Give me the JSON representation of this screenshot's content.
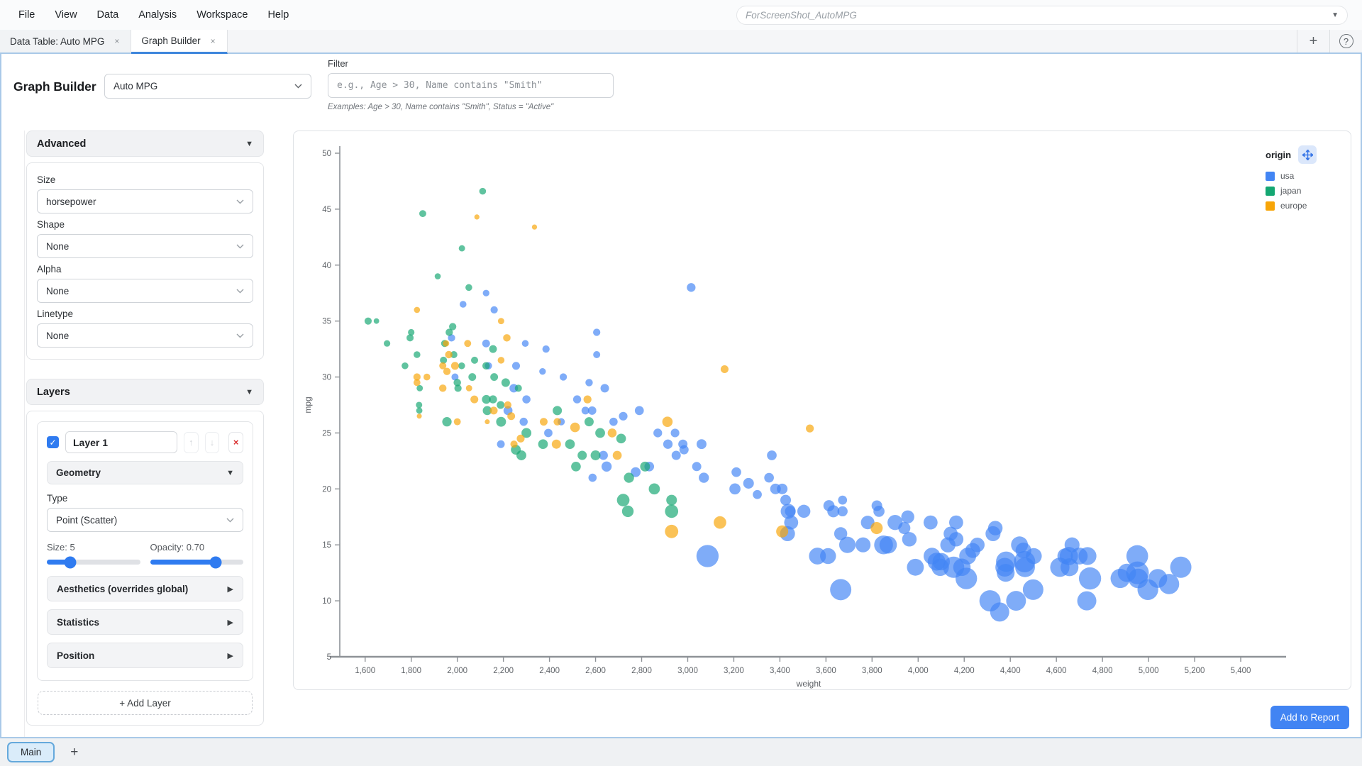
{
  "icons": {
    "check": "✓",
    "caret_down": "▼",
    "caret_right": "▶",
    "dropdown": "▼",
    "close": "×",
    "plus": "+",
    "help": "?",
    "up": "↑",
    "down": "↓"
  },
  "menubar": {
    "items": [
      "File",
      "View",
      "Data",
      "Analysis",
      "Workspace",
      "Help"
    ],
    "workspace_name": "ForScreenShot_AutoMPG"
  },
  "tabs": [
    {
      "label": "Data Table: Auto MPG"
    },
    {
      "label": "Graph Builder"
    }
  ],
  "header": {
    "title": "Graph Builder",
    "dataset_select": "Auto MPG",
    "filter_label": "Filter",
    "filter_placeholder": "e.g., Age > 30, Name contains \"Smith\"",
    "filter_examples": "Examples: Age > 30, Name contains \"Smith\", Status = \"Active\""
  },
  "sidebar": {
    "advanced": {
      "title": "Advanced",
      "fields": [
        {
          "label": "Size",
          "value": "horsepower"
        },
        {
          "label": "Shape",
          "value": "None"
        },
        {
          "label": "Alpha",
          "value": "None"
        },
        {
          "label": "Linetype",
          "value": "None"
        }
      ]
    },
    "layers": {
      "title": "Layers",
      "layer": {
        "name": "Layer 1",
        "checked": true,
        "geometry_title": "Geometry",
        "type_label": "Type",
        "type_value": "Point (Scatter)",
        "size_label": "Size: 5",
        "size_percent": 25,
        "opacity_label": "Opacity: 0.70",
        "opacity_percent": 70,
        "sections": [
          "Aesthetics (overrides global)",
          "Statistics",
          "Position"
        ]
      },
      "add_layer": "+ Add Layer"
    }
  },
  "legend": {
    "title": "origin",
    "items": [
      {
        "label": "usa",
        "color": "#4285f4"
      },
      {
        "label": "japan",
        "color": "#14a772"
      },
      {
        "label": "europe",
        "color": "#f7a508"
      }
    ]
  },
  "footer": {
    "add_to_report": "Add to Report"
  },
  "bottombar": {
    "main_tab": "Main"
  },
  "chart_data": {
    "type": "scatter",
    "xlabel": "weight",
    "ylabel": "mpg",
    "x_range": [
      1490,
      5560
    ],
    "y_range": [
      5,
      50
    ],
    "x_ticks": [
      1600,
      1800,
      2000,
      2200,
      2400,
      2600,
      2800,
      3000,
      3200,
      3400,
      3600,
      3800,
      4000,
      4200,
      4400,
      4600,
      4800,
      5000,
      5200,
      5400
    ],
    "x_tick_labels": [
      "1,600",
      "1,800",
      "2,000",
      "2,200",
      "2,400",
      "2,600",
      "2,800",
      "3,000",
      "3,200",
      "3,400",
      "3,600",
      "3,800",
      "4,000",
      "4,200",
      "4,400",
      "4,600",
      "4,800",
      "5,000",
      "5,200",
      "5,400"
    ],
    "y_ticks": [
      5,
      10,
      15,
      20,
      25,
      30,
      35,
      40,
      45,
      50
    ],
    "size_by": "horsepower",
    "hp_range": [
      46,
      230
    ],
    "radius_px": [
      3.5,
      16
    ],
    "opacity": 0.68,
    "series_colors": {
      "usa": "#4285f4",
      "japan": "#14a772",
      "europe": "#f7a508"
    },
    "points": [
      [
        4354,
        9,
        193,
        "usa"
      ],
      [
        4312,
        10,
        215,
        "usa"
      ],
      [
        4425,
        10,
        200,
        "usa"
      ],
      [
        4499,
        11,
        208,
        "usa"
      ],
      [
        4997,
        11,
        210,
        "usa"
      ],
      [
        4955,
        12,
        198,
        "usa"
      ],
      [
        5140,
        13,
        215,
        "usa"
      ],
      [
        4746,
        12,
        225,
        "usa"
      ],
      [
        4615,
        13,
        195,
        "usa"
      ],
      [
        4376,
        13,
        190,
        "usa"
      ],
      [
        4382,
        13.5,
        205,
        "usa"
      ],
      [
        4952,
        12.5,
        230,
        "usa"
      ],
      [
        4464,
        13,
        200,
        "usa"
      ],
      [
        4209,
        12,
        218,
        "usa"
      ],
      [
        4154,
        13,
        215,
        "usa"
      ],
      [
        4096,
        13,
        175,
        "usa"
      ],
      [
        4735,
        14,
        180,
        "usa"
      ],
      [
        4951,
        14,
        220,
        "usa"
      ],
      [
        5040,
        12,
        190,
        "usa"
      ],
      [
        4502,
        14,
        160,
        "usa"
      ],
      [
        4657,
        13,
        180,
        "usa"
      ],
      [
        4906,
        12.5,
        184,
        "usa"
      ],
      [
        4654,
        14,
        184,
        "usa"
      ],
      [
        4699,
        14,
        170,
        "usa"
      ],
      [
        4457,
        14.5,
        158,
        "usa"
      ],
      [
        4638,
        14,
        155,
        "usa"
      ],
      [
        4257,
        15,
        145,
        "usa"
      ],
      [
        4668,
        15,
        150,
        "usa"
      ],
      [
        4440,
        15,
        170,
        "usa"
      ],
      [
        4129,
        15,
        152,
        "usa"
      ],
      [
        3962,
        15.5,
        145,
        "usa"
      ],
      [
        4215,
        14,
        170,
        "usa"
      ],
      [
        4190,
        13,
        175,
        "usa"
      ],
      [
        4380,
        12.5,
        180,
        "usa"
      ],
      [
        4100,
        13.5,
        175,
        "usa"
      ],
      [
        3988,
        13,
        170,
        "usa"
      ],
      [
        4080,
        13.5,
        180,
        "usa"
      ],
      [
        3870,
        15,
        175,
        "usa"
      ],
      [
        4165,
        15.5,
        145,
        "usa"
      ],
      [
        4462,
        13.5,
        215,
        "usa"
      ],
      [
        4237,
        14.5,
        150,
        "usa"
      ],
      [
        4060,
        14,
        168,
        "usa"
      ],
      [
        5089,
        11.5,
        205,
        "usa"
      ],
      [
        4877,
        12,
        195,
        "usa"
      ],
      [
        3664,
        11,
        215,
        "usa"
      ],
      [
        4732,
        10,
        193,
        "usa"
      ],
      [
        3504,
        18,
        130,
        "usa"
      ],
      [
        3693,
        15,
        165,
        "usa"
      ],
      [
        3436,
        18,
        150,
        "usa"
      ],
      [
        3433,
        16,
        150,
        "usa"
      ],
      [
        3449,
        17,
        140,
        "usa"
      ],
      [
        3850,
        15,
        190,
        "usa"
      ],
      [
        3563,
        14,
        170,
        "usa"
      ],
      [
        3609,
        14,
        160,
        "usa"
      ],
      [
        3761,
        15,
        150,
        "usa"
      ],
      [
        3086,
        14,
        225,
        "usa"
      ],
      [
        3664,
        16,
        130,
        "usa"
      ],
      [
        3781,
        17,
        135,
        "usa"
      ],
      [
        3632,
        18,
        120,
        "usa"
      ],
      [
        3613,
        18.5,
        110,
        "usa"
      ],
      [
        4141,
        16,
        140,
        "usa"
      ],
      [
        4054,
        17,
        140,
        "usa"
      ],
      [
        3940,
        16.5,
        120,
        "usa"
      ],
      [
        3955,
        17.5,
        130,
        "usa"
      ],
      [
        3830,
        18,
        110,
        "usa"
      ],
      [
        4165,
        17,
        140,
        "usa"
      ],
      [
        4325,
        16,
        150,
        "usa"
      ],
      [
        4335,
        16.5,
        145,
        "usa"
      ],
      [
        3900,
        17,
        152,
        "usa"
      ],
      [
        3672,
        18,
        100,
        "usa"
      ],
      [
        3821,
        18.5,
        105,
        "usa"
      ],
      [
        3672,
        19,
        88,
        "usa"
      ],
      [
        3410,
        20,
        105,
        "usa"
      ],
      [
        3425,
        19,
        105,
        "usa"
      ],
      [
        3445,
        18,
        105,
        "usa"
      ],
      [
        3205,
        20,
        110,
        "usa"
      ],
      [
        3381,
        20,
        105,
        "usa"
      ],
      [
        3070,
        21,
        100,
        "usa"
      ],
      [
        3264,
        20.5,
        105,
        "usa"
      ],
      [
        3302,
        19.5,
        88,
        "usa"
      ],
      [
        3353,
        21,
        95,
        "usa"
      ],
      [
        2587,
        21,
        80,
        "usa"
      ],
      [
        2833,
        22,
        95,
        "usa"
      ],
      [
        2774,
        21.5,
        97,
        "usa"
      ],
      [
        2648,
        22,
        100,
        "usa"
      ],
      [
        2634,
        23,
        88,
        "usa"
      ],
      [
        2979,
        24,
        90,
        "usa"
      ],
      [
        2189,
        24,
        75,
        "usa"
      ],
      [
        2395,
        25,
        81,
        "usa"
      ],
      [
        2288,
        26,
        79,
        "usa"
      ],
      [
        2220,
        27,
        88,
        "usa"
      ],
      [
        2300,
        28,
        79,
        "usa"
      ],
      [
        2245,
        29,
        83,
        "usa"
      ],
      [
        1990,
        30,
        68,
        "usa"
      ],
      [
        2135,
        31,
        70,
        "usa"
      ],
      [
        2556,
        27,
        75,
        "usa"
      ],
      [
        2678,
        26,
        80,
        "usa"
      ],
      [
        2870,
        25,
        85,
        "usa"
      ],
      [
        2950,
        23,
        90,
        "usa"
      ],
      [
        3039,
        22,
        90,
        "usa"
      ],
      [
        2914,
        24,
        92,
        "usa"
      ],
      [
        2984,
        23.5,
        90,
        "usa"
      ],
      [
        3211,
        21.5,
        95,
        "usa"
      ],
      [
        2945,
        25,
        84,
        "usa"
      ],
      [
        2790,
        27,
        88,
        "usa"
      ],
      [
        2720,
        26.5,
        84,
        "usa"
      ],
      [
        2520,
        28,
        78,
        "usa"
      ],
      [
        2640,
        29,
        83,
        "usa"
      ],
      [
        2572,
        29.5,
        71,
        "usa"
      ],
      [
        2255,
        31,
        76,
        "usa"
      ],
      [
        2460,
        30,
        70,
        "usa"
      ],
      [
        2605,
        32,
        68,
        "usa"
      ],
      [
        2370,
        30.5,
        63,
        "usa"
      ],
      [
        2125,
        33,
        75,
        "usa"
      ],
      [
        2385,
        32.5,
        70,
        "usa"
      ],
      [
        2295,
        33,
        65,
        "usa"
      ],
      [
        2451,
        26,
        70,
        "usa"
      ],
      [
        2605,
        34,
        70,
        "usa"
      ],
      [
        2585,
        27,
        82,
        "usa"
      ],
      [
        3365,
        23,
        95,
        "usa"
      ],
      [
        3060,
        24,
        97,
        "usa"
      ],
      [
        3015,
        38,
        85,
        "usa"
      ],
      [
        2160,
        36,
        70,
        "usa"
      ],
      [
        2025,
        36.5,
        65,
        "usa"
      ],
      [
        2125,
        37.5,
        63,
        "usa"
      ],
      [
        1975,
        33.5,
        70,
        "usa"
      ],
      [
        2372,
        24,
        95,
        "japan"
      ],
      [
        2130,
        27,
        88,
        "japan"
      ],
      [
        1835,
        27,
        60,
        "japan"
      ],
      [
        1649,
        35,
        52,
        "japan"
      ],
      [
        1773,
        31,
        65,
        "japan"
      ],
      [
        1613,
        35,
        69,
        "japan"
      ],
      [
        1834,
        27.5,
        61,
        "japan"
      ],
      [
        1955,
        26,
        92,
        "japan"
      ],
      [
        2278,
        23,
        97,
        "japan"
      ],
      [
        2126,
        28,
        86,
        "japan"
      ],
      [
        2254,
        23.5,
        97,
        "japan"
      ],
      [
        1985,
        32,
        68,
        "japan"
      ],
      [
        1945,
        33,
        68,
        "japan"
      ],
      [
        2155,
        32.5,
        75,
        "japan"
      ],
      [
        1965,
        34,
        70,
        "japan"
      ],
      [
        1980,
        34.5,
        70,
        "japan"
      ],
      [
        2019,
        31,
        65,
        "japan"
      ],
      [
        2075,
        31.5,
        68,
        "japan"
      ],
      [
        2050,
        38,
        65,
        "japan"
      ],
      [
        2020,
        41.5,
        60,
        "japan"
      ],
      [
        2110,
        46.6,
        65,
        "japan"
      ],
      [
        1850,
        44.6,
        67,
        "japan"
      ],
      [
        1915,
        39,
        58,
        "japan"
      ],
      [
        2300,
        25,
        97,
        "japan"
      ],
      [
        2515,
        22,
        95,
        "japan"
      ],
      [
        2745,
        21,
        100,
        "japan"
      ],
      [
        2855,
        20,
        110,
        "japan"
      ],
      [
        2930,
        19,
        105,
        "japan"
      ],
      [
        2815,
        22,
        97,
        "japan"
      ],
      [
        2600,
        23,
        97,
        "japan"
      ],
      [
        2489,
        24,
        95,
        "japan"
      ],
      [
        2542,
        23,
        90,
        "japan"
      ],
      [
        2620,
        25,
        96,
        "japan"
      ],
      [
        2572,
        26,
        90,
        "japan"
      ],
      [
        2265,
        29,
        68,
        "japan"
      ],
      [
        2160,
        30,
        75,
        "japan"
      ],
      [
        1940,
        31.5,
        68,
        "japan"
      ],
      [
        2740,
        18,
        115,
        "japan"
      ],
      [
        2720,
        19,
        125,
        "japan"
      ],
      [
        2930,
        18,
        132,
        "japan"
      ],
      [
        2210,
        29.5,
        83,
        "japan"
      ],
      [
        1800,
        34,
        62,
        "japan"
      ],
      [
        1695,
        33,
        62,
        "japan"
      ],
      [
        1795,
        33.5,
        68,
        "japan"
      ],
      [
        1825,
        32,
        65,
        "japan"
      ],
      [
        2003,
        29,
        70,
        "japan"
      ],
      [
        2155,
        28,
        78,
        "japan"
      ],
      [
        2190,
        26,
        97,
        "japan"
      ],
      [
        2000,
        29.5,
        72,
        "japan"
      ],
      [
        1837,
        29,
        60,
        "japan"
      ],
      [
        2065,
        30,
        75,
        "japan"
      ],
      [
        2125,
        31,
        72,
        "japan"
      ],
      [
        2434,
        27,
        90,
        "japan"
      ],
      [
        2188,
        27.5,
        75,
        "japan"
      ],
      [
        2711,
        24.5,
        95,
        "japan"
      ],
      [
        2130,
        26,
        46,
        "europe"
      ],
      [
        1835,
        26.5,
        46,
        "europe"
      ],
      [
        2672,
        25,
        87,
        "europe"
      ],
      [
        2430,
        24,
        90,
        "europe"
      ],
      [
        2375,
        26,
        75,
        "europe"
      ],
      [
        2234,
        26.5,
        75,
        "europe"
      ],
      [
        2158,
        27,
        76,
        "europe"
      ],
      [
        1937,
        29,
        71,
        "europe"
      ],
      [
        1825,
        30,
        70,
        "europe"
      ],
      [
        1990,
        31,
        76,
        "europe"
      ],
      [
        2074,
        28,
        76,
        "europe"
      ],
      [
        1955,
        30.5,
        71,
        "europe"
      ],
      [
        2045,
        33,
        67,
        "europe"
      ],
      [
        1937,
        31,
        68,
        "europe"
      ],
      [
        1963,
        32,
        71,
        "europe"
      ],
      [
        2190,
        31.5,
        65,
        "europe"
      ],
      [
        2215,
        33.5,
        72,
        "europe"
      ],
      [
        1951,
        33,
        61,
        "europe"
      ],
      [
        2085,
        44.3,
        48,
        "europe"
      ],
      [
        2335,
        43.4,
        48,
        "europe"
      ],
      [
        2930,
        16.2,
        133,
        "europe"
      ],
      [
        3140,
        17,
        125,
        "europe"
      ],
      [
        3410,
        16.2,
        120,
        "europe"
      ],
      [
        3530,
        25.4,
        77,
        "europe"
      ],
      [
        3160,
        30.7,
        76,
        "europe"
      ],
      [
        2912,
        26,
        102,
        "europe"
      ],
      [
        2511,
        25.5,
        95,
        "europe"
      ],
      [
        2246,
        24,
        69,
        "europe"
      ],
      [
        2000,
        26,
        67,
        "europe"
      ],
      [
        2051,
        29,
        60,
        "europe"
      ],
      [
        1868,
        30,
        65,
        "europe"
      ],
      [
        2275,
        24.5,
        76,
        "europe"
      ],
      [
        2694,
        23,
        88,
        "europe"
      ],
      [
        2565,
        28,
        77,
        "europe"
      ],
      [
        1825,
        29.5,
        66,
        "europe"
      ],
      [
        2219,
        27.5,
        71,
        "europe"
      ],
      [
        2434,
        26,
        72,
        "europe"
      ],
      [
        1825,
        36,
        58,
        "europe"
      ],
      [
        2190,
        35,
        60,
        "europe"
      ],
      [
        3820,
        16.5,
        120,
        "europe"
      ]
    ]
  }
}
